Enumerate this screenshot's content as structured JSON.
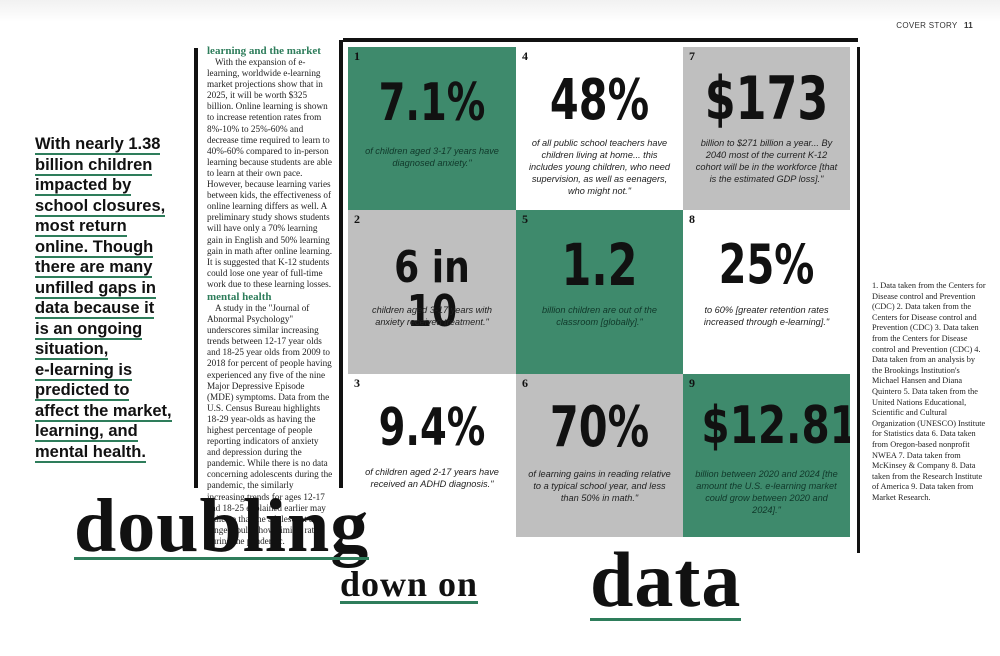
{
  "header": {
    "section": "COVER STORY",
    "page": "11"
  },
  "pull_quote_lines": [
    "With nearly 1.38",
    "billion children",
    "impacted by",
    "school closures,",
    "most return",
    "online. Though",
    "there are many",
    "unfilled gaps in",
    "data because it",
    "is an ongoing",
    "situation,",
    "e-learning is",
    "predicted to",
    "affect the market,",
    "learning, and",
    "mental health."
  ],
  "article": {
    "heading1": "learning and the market",
    "para1": "With the expansion of e-learning, worldwide e-learning market projections show that in 2025, it will be worth $325 billion. Online learning is shown to increase retention rates from 8%-10% to 25%-60% and decrease time required to learn to 40%-60% compared to in-person learning because students are able to learn at their own pace. However, because learning varies between kids, the effectiveness of online learning differs as well. A preliminary study shows students will have only a 70% learning gain in English and 50% learning gain in math after online learning. It is suggested that K-12 students could lose one year of full-time work due to these learning losses.",
    "heading2": "mental health",
    "para2": "A study in the \"Journal of Abnormal Psychology\" underscores similar increasing trends between 12-17 year olds and 18-25 year olds from 2009 to 2018 for percent of people having experienced any five of the nine Major Depressive Episode (MDE) symptoms. Data from the U.S. Census Bureau highlights 18-29 year-olds as having the highest percentage of people reporting indicators of anxiety and depression during the pandemic. While there is no data concerning adolescents during the pandemic, the similarly increasing trends for ages 12-17 and 18-25 explained earlier may indicate that the adolescent age range would show similar rates during the pandemic."
  },
  "stats": [
    {
      "num": "1",
      "value": "7.1%",
      "caption": "of children aged 3-17 years have diagnosed anxiety.\""
    },
    {
      "num": "4",
      "value": "48%",
      "caption": "of all public school teachers have children living at home... this includes young children, who need supervision, as well as eenagers, who might not.\""
    },
    {
      "num": "7",
      "value": "$173",
      "caption": "billion to $271 billion a year... By 2040 most of the current K-12 cohort will be in the workforce [that is the estimated GDP loss].\""
    },
    {
      "num": "2",
      "value": "6 in 10",
      "caption": "children aged 3-17 years with anxiety received treatment.\""
    },
    {
      "num": "5",
      "value": "1.2",
      "caption": "billion children are out of the classroom [globally].\""
    },
    {
      "num": "8",
      "value": "25%",
      "caption": "to 60% [greater retention rates increased through e-learning].\""
    },
    {
      "num": "3",
      "value": "9.4%",
      "caption": "of children aged 2-17 years have received an ADHD diagnosis.\""
    },
    {
      "num": "6",
      "value": "70%",
      "caption": "of learning gains in reading relative to a typical school year, and less than 50% in math.\""
    },
    {
      "num": "9",
      "value": "$12.81",
      "caption": "billion between 2020 and 2024 [the amount the U.S. e-learning market could grow between 2020 and 2024].\""
    }
  ],
  "notes": "1. Data taken from the Centers for Disease control and Prevention (CDC) 2. Data taken from the Centers for Disease control and Prevention (CDC) 3. Data taken from the Centers for Disease control and Prevention (CDC) 4. Data taken from an analysis by the Brookings Institution's Michael Hansen and Diana Quintero 5. Data taken from the United Nations Educational, Scientific and Cultural Organization (UNESCO) Institute for Statistics data 6. Data taken from Oregon-based nonprofit NWEA 7. Data taken from McKinsey & Company 8. Data taken from the Research Institute of America 9. Data taken from Market Research.",
  "title": {
    "word1": "doubling",
    "word2": "down on",
    "word3": "data"
  },
  "colors": {
    "accent_green": "#3e8a6c",
    "gray": "#bfbfbf"
  }
}
